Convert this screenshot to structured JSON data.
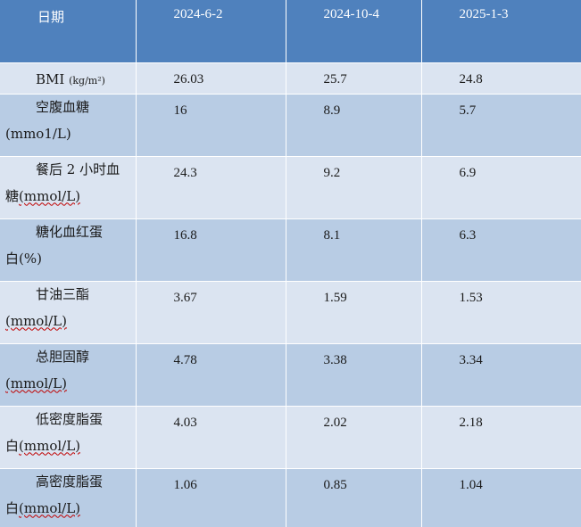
{
  "header": {
    "label": "日期",
    "dates": [
      "2024-6-2",
      "2024-10-4",
      "2025-1-3"
    ]
  },
  "rows": [
    {
      "name_line1": "BMI",
      "name_unit": "(kg/m²)",
      "values": [
        "26.03",
        "25.7",
        "24.8"
      ]
    },
    {
      "name_line1": "空腹血糖",
      "name_line2": "(mmo1/L)",
      "values": [
        "16",
        "8.9",
        "5.7"
      ]
    },
    {
      "name_line1": "餐后 2 小时血",
      "name_line2_prefix": "糖",
      "name_line2": "(mmol/L)",
      "values": [
        "24.3",
        "9.2",
        "6.9"
      ]
    },
    {
      "name_line1": "糖化血红蛋",
      "name_line2_prefix": "白",
      "name_line2": "(%)",
      "values": [
        "16.8",
        "8.1",
        "6.3"
      ]
    },
    {
      "name_line1": "甘油三酯",
      "name_line2": "(mmol/L)",
      "values": [
        "3.67",
        "1.59",
        "1.53"
      ]
    },
    {
      "name_line1": "总胆固醇",
      "name_line2": "(mmol/L)",
      "values": [
        "4.78",
        "3.38",
        "3.34"
      ]
    },
    {
      "name_line1": "低密度脂蛋",
      "name_line2_prefix": "白",
      "name_line2": "(mmol/L)",
      "values": [
        "4.03",
        "2.02",
        "2.18"
      ]
    },
    {
      "name_line1": "高密度脂蛋",
      "name_line2_prefix": "白",
      "name_line2": "(mmol/L)",
      "values": [
        "1.06",
        "0.85",
        "1.04"
      ]
    }
  ],
  "colors": {
    "header_bg": "#4f81bd",
    "row_light": "#dbe4f1",
    "row_dark": "#b8cce4"
  }
}
